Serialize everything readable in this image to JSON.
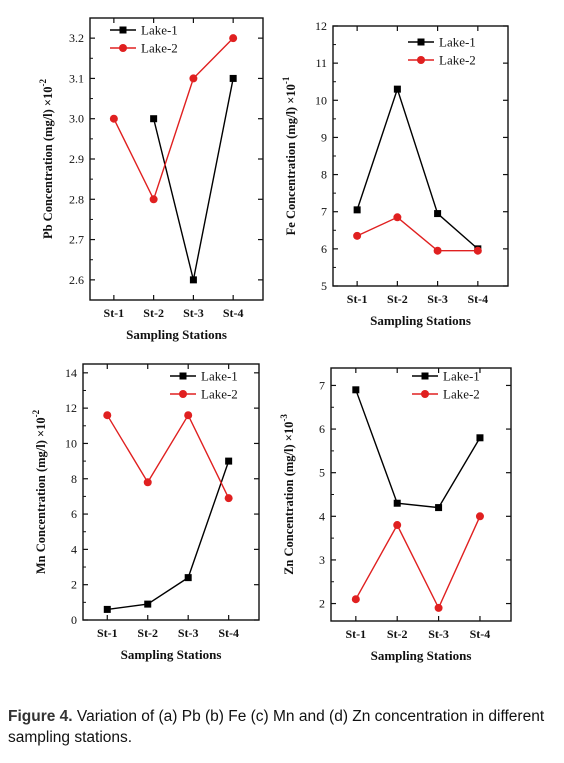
{
  "caption": {
    "label": "Figure 4.",
    "text": "Variation of (a) Pb (b) Fe (c) Mn and (d) Zn concentration in different sampling stations."
  },
  "colors": {
    "lake1": "#000000",
    "lake2": "#e02020"
  },
  "chart_data": [
    {
      "type": "line",
      "title": "",
      "xlabel": "Sampling Stations",
      "ylabel": "Pb Concentration (mg/l) ×10",
      "ylabel_exp": "-2",
      "categories": [
        "St-1",
        "St-2",
        "St-3",
        "St-4"
      ],
      "ylim": [
        2.55,
        3.25
      ],
      "yticks": [
        2.6,
        2.7,
        2.8,
        2.9,
        3.0,
        3.1,
        3.2
      ],
      "tick_decimals": 1,
      "legend": "top-left",
      "series": [
        {
          "name": "Lake-1",
          "marker": "square",
          "values": [
            null,
            3.0,
            2.6,
            3.1
          ]
        },
        {
          "name": "Lake-2",
          "marker": "circle",
          "values": [
            3.0,
            2.8,
            3.1,
            3.2
          ]
        }
      ]
    },
    {
      "type": "line",
      "title": "",
      "xlabel": "Sampling Stations",
      "ylabel": "Fe Concentration (mg/l) ×10",
      "ylabel_exp": "-1",
      "categories": [
        "St-1",
        "St-2",
        "St-3",
        "St-4"
      ],
      "ylim": [
        5,
        12
      ],
      "yticks": [
        5,
        6,
        7,
        8,
        9,
        10,
        11,
        12
      ],
      "tick_decimals": 0,
      "legend": "top-right",
      "series": [
        {
          "name": "Lake-1",
          "marker": "square",
          "values": [
            7.05,
            10.3,
            6.95,
            6.0
          ]
        },
        {
          "name": "Lake-2",
          "marker": "circle",
          "values": [
            6.35,
            6.85,
            5.95,
            5.95
          ]
        }
      ]
    },
    {
      "type": "line",
      "title": "",
      "xlabel": "Sampling Stations",
      "ylabel": "Mn Concentration (mg/l) ×10",
      "ylabel_exp": "-2",
      "categories": [
        "St-1",
        "St-2",
        "St-3",
        "St-4"
      ],
      "ylim": [
        0,
        14.5
      ],
      "yticks": [
        0,
        2,
        4,
        6,
        8,
        10,
        12,
        14
      ],
      "tick_decimals": 0,
      "legend": "top-right",
      "series": [
        {
          "name": "Lake-1",
          "marker": "square",
          "values": [
            0.6,
            0.9,
            2.4,
            9.0
          ]
        },
        {
          "name": "Lake-2",
          "marker": "circle",
          "values": [
            11.6,
            7.8,
            11.6,
            6.9
          ]
        }
      ]
    },
    {
      "type": "line",
      "title": "",
      "xlabel": "Sampling Stations",
      "ylabel": "Zn Concentration (mg/l) ×10",
      "ylabel_exp": "-3",
      "categories": [
        "St-1",
        "St-2",
        "St-3",
        "St-4"
      ],
      "ylim": [
        1.6,
        7.4
      ],
      "yticks": [
        2,
        3,
        4,
        5,
        6,
        7
      ],
      "tick_decimals": 0,
      "legend": "top-right",
      "series": [
        {
          "name": "Lake-1",
          "marker": "square",
          "values": [
            6.9,
            4.3,
            4.2,
            5.8
          ]
        },
        {
          "name": "Lake-2",
          "marker": "circle",
          "values": [
            2.1,
            3.8,
            1.9,
            4.0
          ]
        }
      ]
    }
  ]
}
